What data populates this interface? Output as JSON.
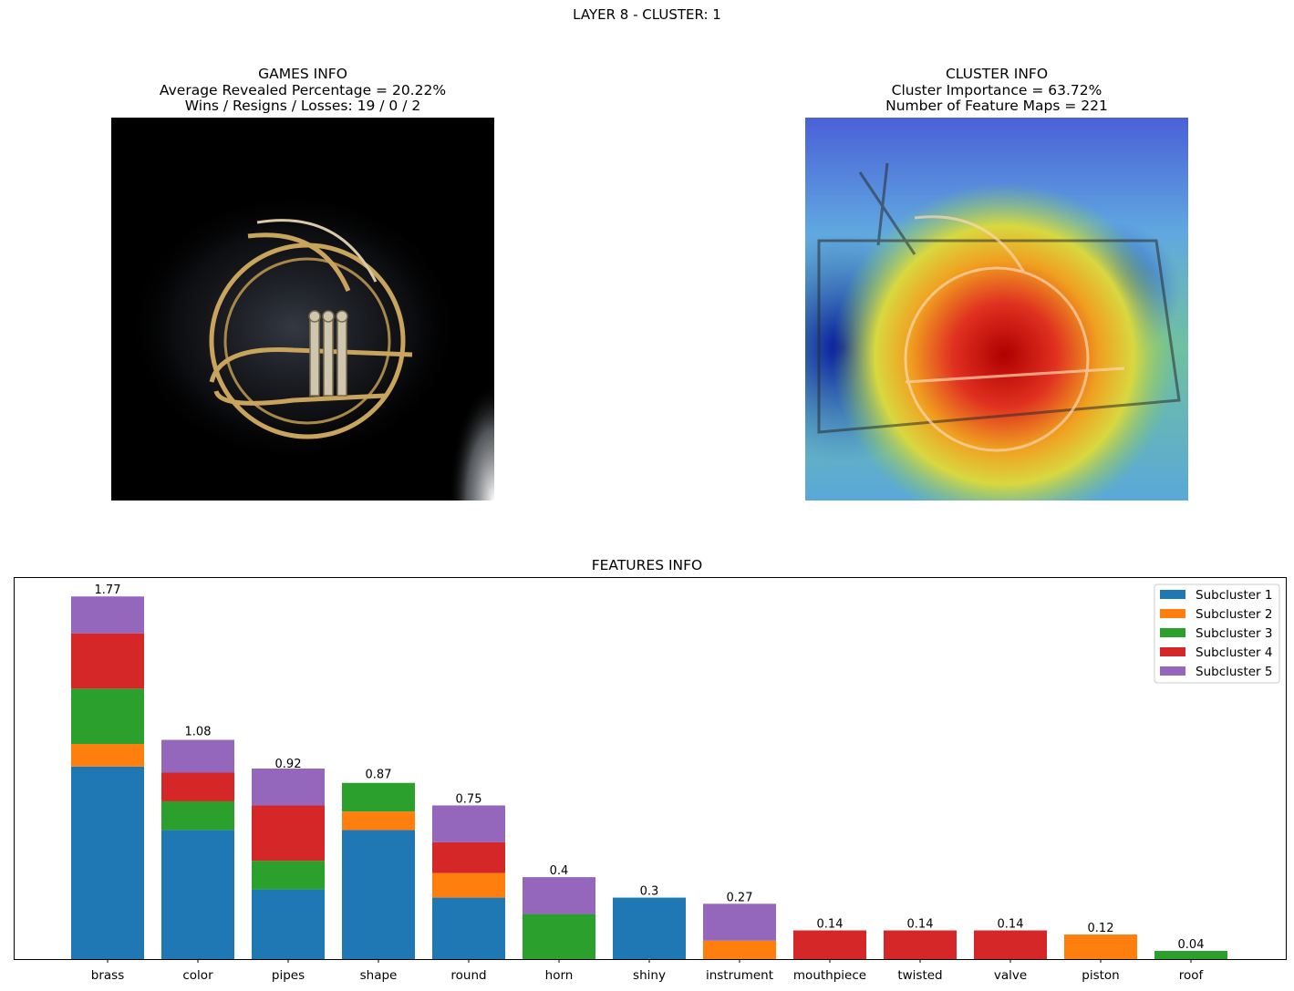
{
  "figure": {
    "suptitle": "LAYER 8 - CLUSTER: 1"
  },
  "games_info": {
    "title": "GAMES INFO",
    "line1": "Average Revealed Percentage = 20.22%",
    "line2": "Wins / Resigns / Losses: 19 / 0 / 2"
  },
  "cluster_info": {
    "title": "CLUSTER INFO",
    "line1": "Cluster Importance = 63.72%",
    "line2": "Number of Feature Maps = 221"
  },
  "features_info": {
    "title": "FEATURES INFO"
  },
  "colors": {
    "subcluster_1": "#1f77b4",
    "subcluster_2": "#ff7f0e",
    "subcluster_3": "#2ca02c",
    "subcluster_4": "#d62728",
    "subcluster_5": "#9467bd"
  },
  "chart_data": {
    "type": "bar",
    "stacked": true,
    "title": "FEATURES INFO",
    "xlabel": "",
    "ylabel": "",
    "y_ticks_shown": false,
    "ylim": [
      0,
      1.86
    ],
    "grid": false,
    "legend_position": "top-right",
    "categories": [
      "brass",
      "color",
      "pipes",
      "shape",
      "round",
      "horn",
      "shiny",
      "instrument",
      "mouthpiece",
      "twisted",
      "valve",
      "piston",
      "roof"
    ],
    "totals": [
      1.77,
      1.08,
      0.92,
      0.87,
      0.75,
      0.4,
      0.3,
      0.27,
      0.14,
      0.14,
      0.14,
      0.12,
      0.04
    ],
    "total_labels": [
      "1.77",
      "1.08",
      "0.92",
      "0.87",
      "0.75",
      "0.4",
      "0.3",
      "0.27",
      "0.14",
      "0.14",
      "0.14",
      "0.12",
      "0.04"
    ],
    "series": [
      {
        "name": "Subcluster 1",
        "color": "#1f77b4",
        "values": [
          0.94,
          0.63,
          0.34,
          0.63,
          0.3,
          0.0,
          0.3,
          0.0,
          0.0,
          0.0,
          0.0,
          0.0,
          0.0
        ]
      },
      {
        "name": "Subcluster 2",
        "color": "#ff7f0e",
        "values": [
          0.11,
          0.0,
          0.0,
          0.09,
          0.12,
          0.0,
          0.0,
          0.09,
          0.0,
          0.0,
          0.0,
          0.12,
          0.0
        ]
      },
      {
        "name": "Subcluster 3",
        "color": "#2ca02c",
        "values": [
          0.27,
          0.14,
          0.14,
          0.14,
          0.0,
          0.22,
          0.0,
          0.0,
          0.0,
          0.0,
          0.0,
          0.0,
          0.04
        ]
      },
      {
        "name": "Subcluster 4",
        "color": "#d62728",
        "values": [
          0.27,
          0.14,
          0.27,
          0.0,
          0.15,
          0.0,
          0.0,
          0.0,
          0.14,
          0.14,
          0.14,
          0.0,
          0.0
        ]
      },
      {
        "name": "Subcluster 5",
        "color": "#9467bd",
        "values": [
          0.18,
          0.16,
          0.18,
          0.0,
          0.18,
          0.18,
          0.0,
          0.18,
          0.0,
          0.0,
          0.0,
          0.0,
          0.0
        ]
      }
    ]
  }
}
